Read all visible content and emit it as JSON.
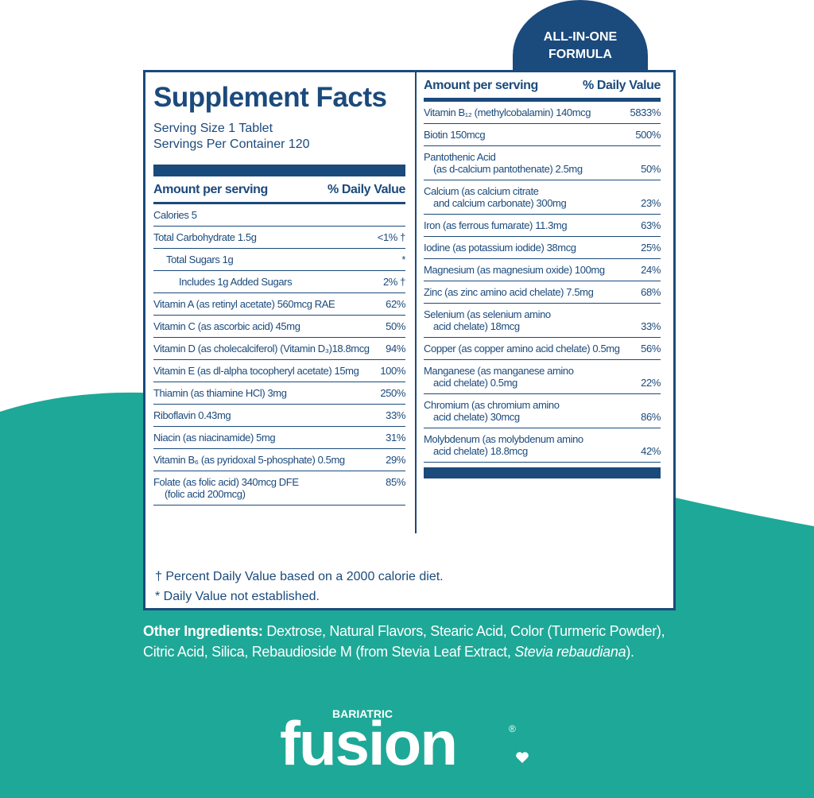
{
  "badge": [
    "ALL-IN-ONE",
    "FORMULA"
  ],
  "title": "Supplement Facts",
  "serving_size": "Serving Size 1 Tablet",
  "servings_per_container": "Servings Per Container 120",
  "left_header": [
    "Amount per serving",
    "% Daily Value"
  ],
  "left_rows": [
    {
      "lines": [
        "Calories 5"
      ]
    },
    {
      "lines": [
        "Total Carbohydrate 1.5g"
      ],
      "dv": "<1% †"
    },
    {
      "lines": [
        "Total Sugars 1g"
      ],
      "dv": "*"
    },
    {
      "lines": [
        "Includes 1g Added Sugars"
      ],
      "dv": "2% †"
    },
    {
      "lines": [
        "Vitamin A (as retinyl acetate) 560mcg RAE"
      ],
      "dv": "62%"
    },
    {
      "lines": [
        "Vitamin C (as ascorbic acid) 45mg"
      ],
      "dv": "50%"
    },
    {
      "lines": [
        "Vitamin D (as cholecalciferol) (Vitamin D₃)18.8mcg"
      ],
      "dv": "94%"
    },
    {
      "lines": [
        "Vitamin E (as dl-alpha tocopheryl acetate) 15mg"
      ],
      "dv": "100%"
    },
    {
      "lines": [
        "Thiamin (as thiamine HCl) 3mg"
      ],
      "dv": "250%"
    },
    {
      "lines": [
        "Riboflavin 0.43mg"
      ],
      "dv": "33%"
    },
    {
      "lines": [
        "Niacin (as niacinamide) 5mg"
      ],
      "dv": "31%"
    },
    {
      "lines": [
        "Vitamin B₆ (as pyridoxal 5-phosphate) 0.5mg"
      ],
      "dv": "29%"
    },
    {
      "lines": [
        "Folate (as folic acid) 340mcg DFE",
        "(folic acid 200mcg)"
      ],
      "dv": "85%"
    }
  ],
  "right_header": [
    "Amount per serving",
    "% Daily Value"
  ],
  "right_rows": [
    {
      "lines": [
        "Vitamin B₁₂ (methylcobalamin) 140mcg"
      ],
      "dv": "5833%"
    },
    {
      "lines": [
        "Biotin 150mcg"
      ],
      "dv": "500%"
    },
    {
      "lines": [
        "Pantothenic Acid",
        "(as d-calcium pantothenate) 2.5mg"
      ],
      "dv": "50%"
    },
    {
      "lines": [
        "Calcium (as calcium citrate",
        "and calcium carbonate) 300mg"
      ],
      "dv": "23%"
    },
    {
      "lines": [
        "Iron (as ferrous fumarate) 11.3mg"
      ],
      "dv": "63%"
    },
    {
      "lines": [
        "Iodine (as potassium iodide) 38mcg"
      ],
      "dv": "25%"
    },
    {
      "lines": [
        "Magnesium (as magnesium oxide) 100mg"
      ],
      "dv": "24%"
    },
    {
      "lines": [
        "Zinc (as zinc amino acid chelate) 7.5mg"
      ],
      "dv": "68%"
    },
    {
      "lines": [
        "Selenium (as selenium amino",
        "acid chelate) 18mcg"
      ],
      "dv": "33%"
    },
    {
      "lines": [
        "Copper (as copper amino acid chelate) 0.5mg"
      ],
      "dv": "56%"
    },
    {
      "lines": [
        "Manganese (as manganese amino",
        "acid chelate) 0.5mg"
      ],
      "dv": "22%"
    },
    {
      "lines": [
        "Chromium (as chromium amino",
        "acid chelate) 30mcg"
      ],
      "dv": "86%"
    },
    {
      "lines": [
        "Molybdenum (as molybdenum amino",
        "acid chelate) 18.8mcg"
      ],
      "dv": "42%"
    }
  ],
  "footnotes": [
    "† Percent Daily Value based on a 2000 calorie diet.",
    "* Daily Value not established."
  ],
  "ingredients": {
    "label": "Other Ingredients:",
    "text": "Dextrose, Natural Flavors, Stearic Acid, Color (Turmeric Powder), Citric Acid, Silica, Rebaudioside M (from Stevia Leaf Extract,",
    "italic": "Stevia rebaudiana",
    "end": ")."
  },
  "logo": {
    "small": "BARIATRIC",
    "main": "fusion",
    "mark": "®"
  }
}
